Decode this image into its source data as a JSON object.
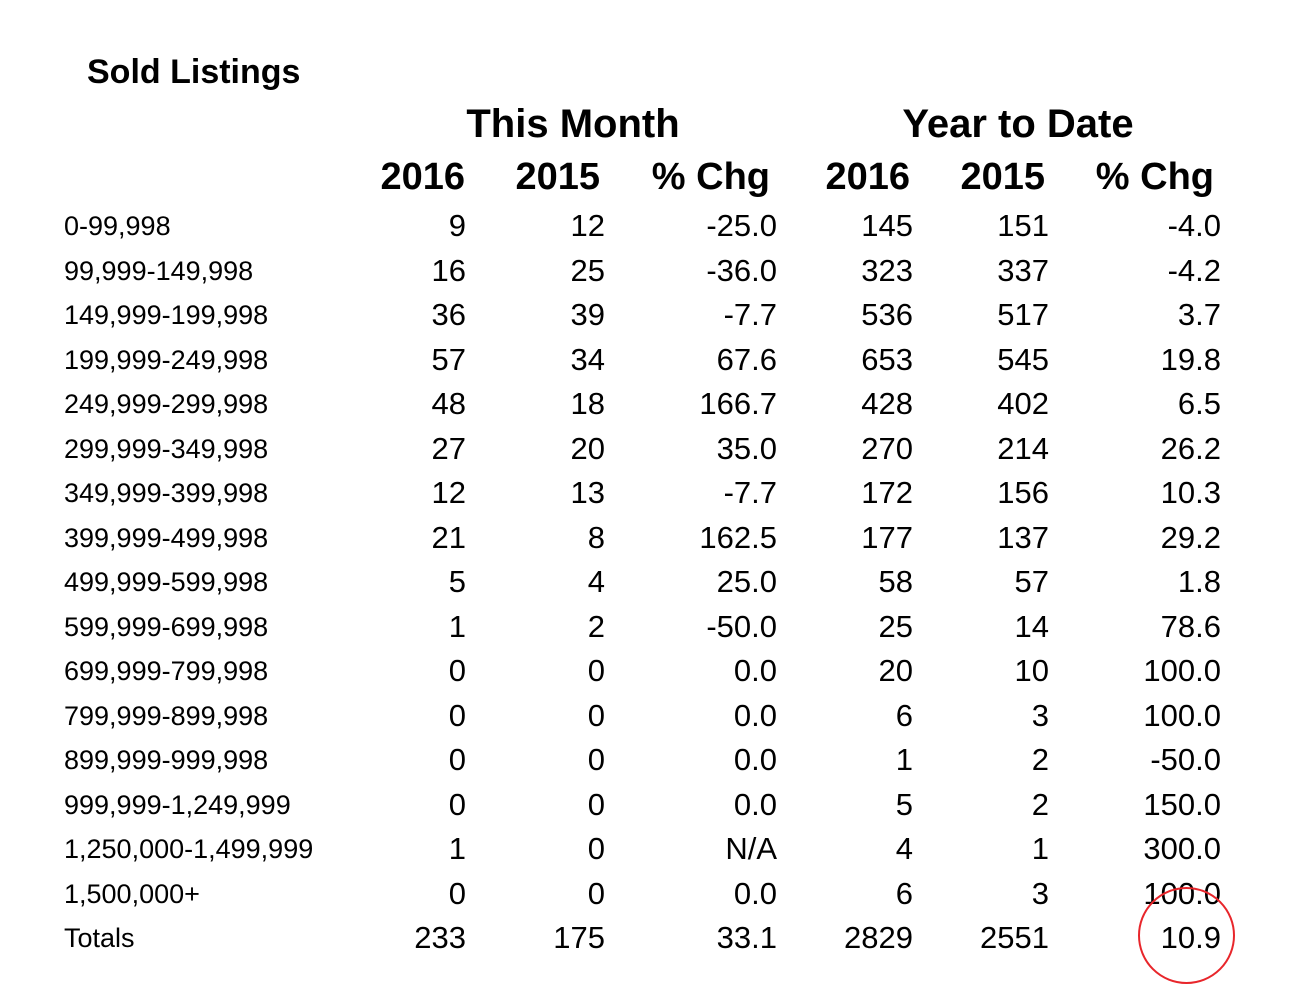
{
  "title": "Sold Listings",
  "groups": {
    "this_month": "This Month",
    "year_to_date": "Year to Date"
  },
  "columns": [
    "2016",
    "2015",
    "% Chg",
    "2016",
    "2015",
    "% Chg"
  ],
  "rows": [
    {
      "label": "0-99,998",
      "values": [
        "9",
        "12",
        "-25.0",
        "145",
        "151",
        "-4.0"
      ]
    },
    {
      "label": "99,999-149,998",
      "values": [
        "16",
        "25",
        "-36.0",
        "323",
        "337",
        "-4.2"
      ]
    },
    {
      "label": "149,999-199,998",
      "values": [
        "36",
        "39",
        "-7.7",
        "536",
        "517",
        "3.7"
      ]
    },
    {
      "label": "199,999-249,998",
      "values": [
        "57",
        "34",
        "67.6",
        "653",
        "545",
        "19.8"
      ]
    },
    {
      "label": "249,999-299,998",
      "values": [
        "48",
        "18",
        "166.7",
        "428",
        "402",
        "6.5"
      ]
    },
    {
      "label": "299,999-349,998",
      "values": [
        "27",
        "20",
        "35.0",
        "270",
        "214",
        "26.2"
      ]
    },
    {
      "label": "349,999-399,998",
      "values": [
        "12",
        "13",
        "-7.7",
        "172",
        "156",
        "10.3"
      ]
    },
    {
      "label": "399,999-499,998",
      "values": [
        "21",
        "8",
        "162.5",
        "177",
        "137",
        "29.2"
      ]
    },
    {
      "label": "499,999-599,998",
      "values": [
        "5",
        "4",
        "25.0",
        "58",
        "57",
        "1.8"
      ]
    },
    {
      "label": "599,999-699,998",
      "values": [
        "1",
        "2",
        "-50.0",
        "25",
        "14",
        "78.6"
      ]
    },
    {
      "label": "699,999-799,998",
      "values": [
        "0",
        "0",
        "0.0",
        "20",
        "10",
        "100.0"
      ]
    },
    {
      "label": "799,999-899,998",
      "values": [
        "0",
        "0",
        "0.0",
        "6",
        "3",
        "100.0"
      ]
    },
    {
      "label": "899,999-999,998",
      "values": [
        "0",
        "0",
        "0.0",
        "1",
        "2",
        "-50.0"
      ]
    },
    {
      "label": "999,999-1,249,999",
      "values": [
        "0",
        "0",
        "0.0",
        "5",
        "2",
        "150.0"
      ]
    },
    {
      "label": "1,250,000-1,499,999",
      "values": [
        "1",
        "0",
        "N/A",
        "4",
        "1",
        "300.0"
      ]
    },
    {
      "label": "1,500,000+",
      "values": [
        "0",
        "0",
        "0.0",
        "6",
        "3",
        "100.0"
      ]
    },
    {
      "label": "Totals",
      "values": [
        "233",
        "175",
        "33.1",
        "2829",
        "2551",
        "10.9"
      ]
    }
  ],
  "highlight": {
    "target": "Totals year-to-date % Chg",
    "color": "#e8262b"
  }
}
